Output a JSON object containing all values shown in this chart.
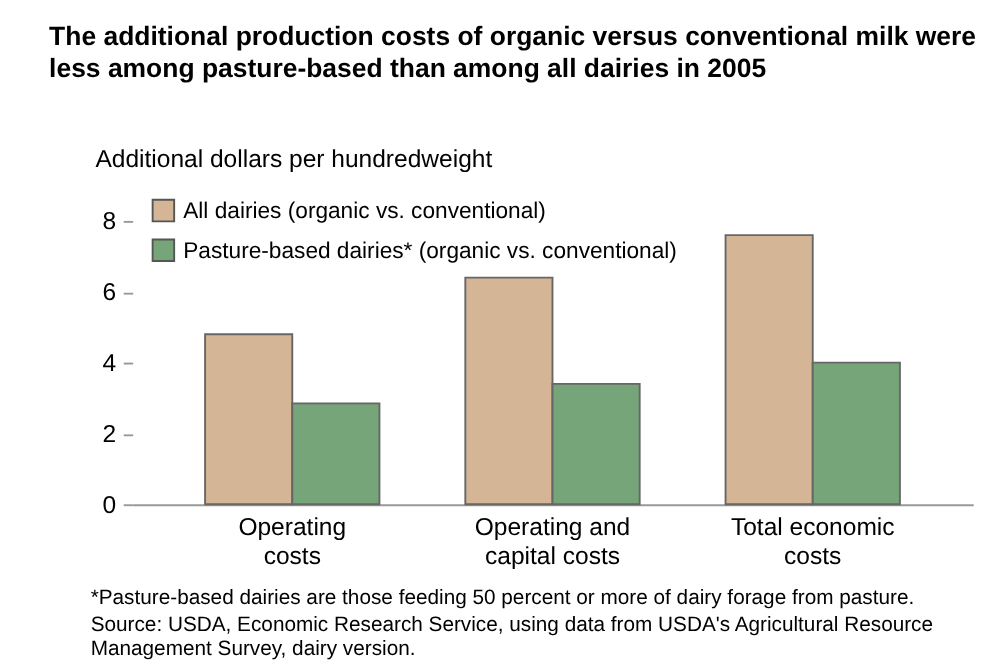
{
  "chart_data": {
    "type": "bar",
    "title": "The additional production costs of organic versus conventional milk were less among pasture-based than among all dairies in 2005",
    "ylabel": "Additional dollars per hundredweight",
    "categories": [
      "Operating\ncosts",
      "Operating and\ncapital costs",
      "Total economic\ncosts"
    ],
    "series": [
      {
        "name": "All dairies (organic vs. conventional)",
        "color": "#d4b595",
        "values": [
          4.8,
          6.4,
          7.6
        ]
      },
      {
        "name": "Pasture-based dairies* (organic vs. conventional)",
        "color": "#77a57a",
        "values": [
          2.85,
          3.4,
          4.0
        ]
      }
    ],
    "ylim": [
      0,
      8
    ],
    "yticks": [
      0,
      2,
      4,
      6,
      8
    ],
    "grid": false,
    "legend": "top left",
    "annotations": [
      "*Pasture-based dairies are those feeding 50 percent or more of dairy forage from pasture.",
      "Source: USDA, Economic Research Service, using data from USDA's Agricultural Resource Management Survey, dairy version."
    ]
  }
}
